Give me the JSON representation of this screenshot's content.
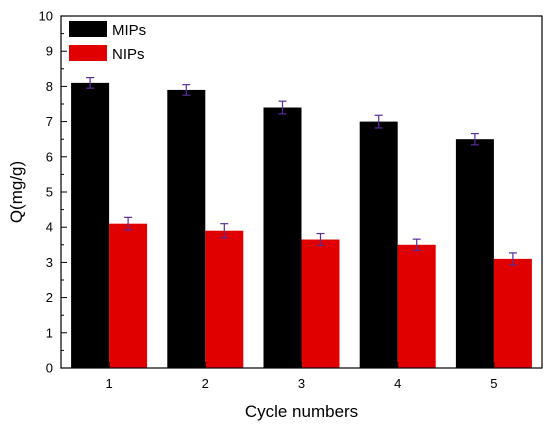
{
  "chart_data": {
    "type": "bar",
    "title": "",
    "xlabel": "Cycle numbers",
    "ylabel": "Q(mg/g)",
    "categories": [
      "1",
      "2",
      "3",
      "4",
      "5"
    ],
    "ylim": [
      0,
      10
    ],
    "yticks": [
      "0",
      "1",
      "2",
      "3",
      "4",
      "5",
      "6",
      "7",
      "8",
      "9",
      "10"
    ],
    "legend_position": "top-left",
    "grid": false,
    "series": [
      {
        "name": "MIPs",
        "color": "#000000",
        "values": [
          8.1,
          7.9,
          7.4,
          7.0,
          6.5
        ],
        "errors": [
          0.15,
          0.15,
          0.18,
          0.18,
          0.16
        ]
      },
      {
        "name": "NIPs",
        "color": "#e00000",
        "values": [
          4.1,
          3.9,
          3.65,
          3.5,
          3.1
        ],
        "errors": [
          0.18,
          0.2,
          0.17,
          0.16,
          0.17
        ]
      }
    ],
    "error_bar_color": "#5a2d9c"
  }
}
